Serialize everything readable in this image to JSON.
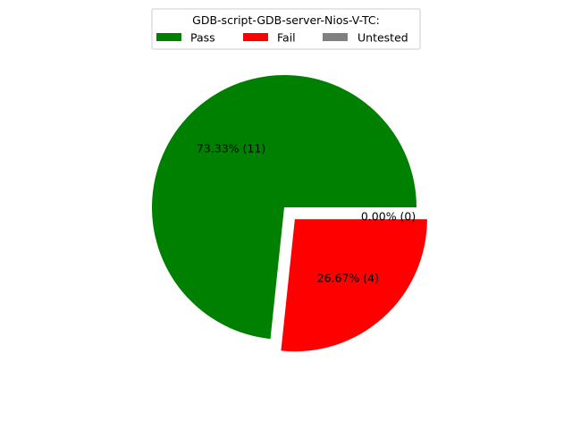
{
  "chart_data": {
    "type": "pie",
    "legend": {
      "title": "GDB-script-GDB-server-Nios-V-TC:",
      "placement": "top-center",
      "entries": [
        "Pass",
        "Fail",
        "Untested"
      ]
    },
    "slices": [
      {
        "label": "Pass",
        "value": 11,
        "percent_label": "73.33%  (11)",
        "color": "#008000",
        "exploded": false
      },
      {
        "label": "Fail",
        "value": 4,
        "percent_label": "26.67%  (4)",
        "color": "#ff0000",
        "exploded": true
      },
      {
        "label": "Untested",
        "value": 0,
        "percent_label": "0.00%  (0)",
        "color": "#808080",
        "exploded": true
      }
    ],
    "start_angle_deg": 0,
    "direction": "counterclockwise"
  }
}
